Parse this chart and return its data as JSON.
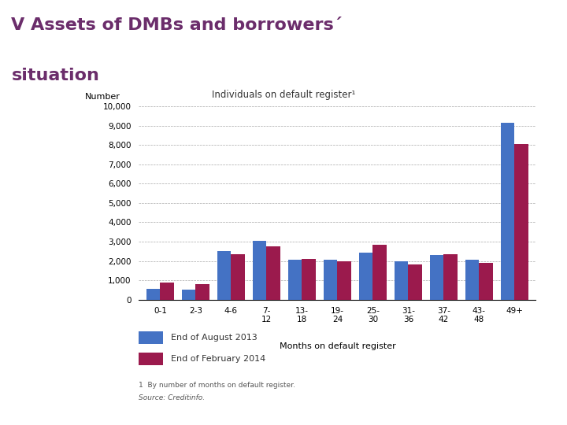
{
  "title_line1": "V Assets of DMBs and borrowers´",
  "title_line2": "situation",
  "chart_title": "Individuals on default register¹",
  "ylabel": "Number",
  "xlabel": "Months on default register",
  "categories": [
    "0-1",
    "2-3",
    "4-6",
    "7-\n12",
    "13-\n18",
    "19-\n24",
    "25-\n30",
    "31-\n36",
    "37-\n42",
    "43-\n48",
    "49+"
  ],
  "aug2013": [
    550,
    500,
    2500,
    3050,
    2050,
    2050,
    2450,
    2000,
    2300,
    2050,
    9150
  ],
  "feb2014": [
    900,
    800,
    2350,
    2750,
    2100,
    2000,
    2850,
    1800,
    2350,
    1900,
    8050
  ],
  "color_aug": "#4472C4",
  "color_feb": "#9B1A4D",
  "legend1": "End of August 2013",
  "legend2": "End of February 2014",
  "footnote1": "1  By number of months on default register.",
  "footnote2": "Source: Creditinfo.",
  "ylim": [
    0,
    10000
  ],
  "yticks": [
    0,
    1000,
    2000,
    3000,
    4000,
    5000,
    6000,
    7000,
    8000,
    9000,
    10000
  ],
  "title_color": "#6B2D6B",
  "header_bar_color": "#7B1A4B",
  "background_color": "#FFFFFF"
}
